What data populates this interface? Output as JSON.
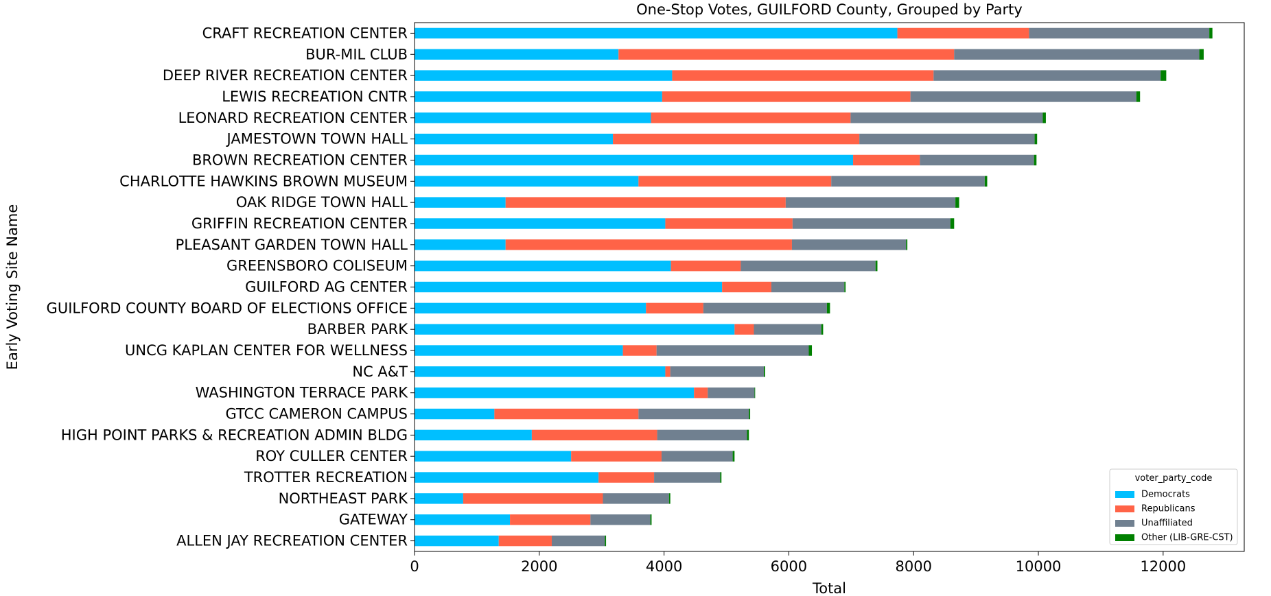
{
  "chart_data": {
    "type": "bar",
    "orientation": "horizontal",
    "stacked": true,
    "title": "One-Stop Votes, GUILFORD County, Grouped by Party",
    "xlabel": "Total",
    "ylabel": "Early Voting Site Name",
    "xlim": [
      0,
      13300
    ],
    "xticks": [
      0,
      2000,
      4000,
      6000,
      8000,
      10000,
      12000
    ],
    "grid": false,
    "legend": {
      "title": "voter_party_code",
      "position": "lower-right"
    },
    "categories": [
      "CRAFT RECREATION CENTER",
      "BUR-MIL CLUB",
      "DEEP RIVER RECREATION CENTER",
      "LEWIS RECREATION CNTR",
      "LEONARD RECREATION CENTER",
      "JAMESTOWN TOWN HALL",
      "BROWN RECREATION CENTER",
      "CHARLOTTE HAWKINS BROWN MUSEUM",
      "OAK RIDGE TOWN HALL",
      "GRIFFIN RECREATION CENTER",
      "PLEASANT GARDEN TOWN HALL",
      "GREENSBORO COLISEUM",
      "GUILFORD AG CENTER",
      "GUILFORD COUNTY BOARD OF ELECTIONS OFFICE",
      "BARBER PARK",
      "UNCG KAPLAN CENTER FOR WELLNESS",
      "NC A&T",
      "WASHINGTON TERRACE PARK",
      "GTCC CAMERON CAMPUS",
      "HIGH POINT PARKS & RECREATION ADMIN BLDG",
      "ROY CULLER CENTER",
      "TROTTER RECREATION",
      "NORTHEAST PARK",
      "GATEWAY",
      "ALLEN JAY RECREATION CENTER"
    ],
    "series": [
      {
        "name": "Democrats",
        "color": "#00bfff",
        "values": [
          7740,
          3270,
          4130,
          3970,
          3790,
          3180,
          7030,
          3590,
          1460,
          4020,
          1460,
          4110,
          4930,
          3710,
          5130,
          3340,
          4020,
          4480,
          1280,
          1880,
          2510,
          2950,
          780,
          1530,
          1350
        ]
      },
      {
        "name": "Republicans",
        "color": "#ff6347",
        "values": [
          2110,
          5380,
          4190,
          3980,
          3200,
          3950,
          1070,
          3090,
          4490,
          2040,
          4590,
          1120,
          790,
          920,
          310,
          540,
          80,
          220,
          2310,
          2010,
          1450,
          890,
          2240,
          1290,
          850
        ]
      },
      {
        "name": "Unaffiliated",
        "color": "#708090",
        "values": [
          2890,
          3930,
          3640,
          3620,
          3080,
          2810,
          1830,
          2460,
          2720,
          2530,
          1830,
          2160,
          1170,
          1980,
          1080,
          2440,
          1500,
          750,
          1770,
          1440,
          1140,
          1060,
          1060,
          960,
          850
        ]
      },
      {
        "name": "Other (LIB-GRE-CST)",
        "color": "#008000",
        "values": [
          50,
          70,
          90,
          60,
          50,
          40,
          40,
          40,
          60,
          60,
          20,
          30,
          20,
          50,
          30,
          50,
          20,
          10,
          20,
          30,
          30,
          20,
          20,
          20,
          20
        ]
      }
    ]
  }
}
